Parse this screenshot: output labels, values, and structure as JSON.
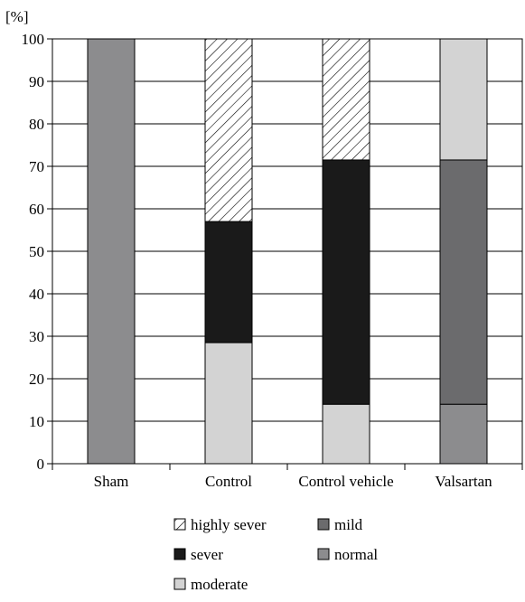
{
  "chart_data": {
    "type": "bar",
    "stacked": true,
    "ylabel": "[%]",
    "ylim": [
      0,
      100
    ],
    "yticks": [
      0,
      10,
      20,
      30,
      40,
      50,
      60,
      70,
      80,
      90,
      100
    ],
    "grid": true,
    "legend_position": "bottom",
    "categories": [
      "Sham",
      "Control",
      "Control vehicle",
      "Valsartan"
    ],
    "series": [
      {
        "name": "normal",
        "key": "normal",
        "color": "#8c8c8e",
        "pattern": "solid",
        "values": [
          100,
          0,
          0,
          14
        ]
      },
      {
        "name": "moderate",
        "key": "moderate",
        "color": "#d3d3d3",
        "pattern": "solid",
        "values": [
          0,
          28.5,
          14,
          0
        ]
      },
      {
        "name": "mild",
        "key": "mild",
        "color": "#6b6b6d",
        "pattern": "solid",
        "values": [
          0,
          0,
          0,
          57.5
        ]
      },
      {
        "name": "sever",
        "key": "sever",
        "color": "#1a1a1a",
        "pattern": "solid",
        "values": [
          0,
          28.5,
          57.5,
          0
        ]
      },
      {
        "name": "highly sever",
        "key": "highly-sever",
        "color": "#ffffff",
        "pattern": "hatch",
        "values": [
          0,
          43,
          28.5,
          0
        ]
      },
      {
        "name": "",
        "key": "moderate-top",
        "color": "#d3d3d3",
        "pattern": "solid",
        "values": [
          0,
          0,
          0,
          28.5
        ]
      }
    ],
    "legend": [
      {
        "label": "highly sever",
        "key": "highly-sever",
        "color": "#ffffff",
        "pattern": "hatch"
      },
      {
        "label": "mild",
        "key": "mild",
        "color": "#6b6b6d",
        "pattern": "solid"
      },
      {
        "label": "sever",
        "key": "sever",
        "color": "#1a1a1a",
        "pattern": "solid"
      },
      {
        "label": "normal",
        "key": "normal",
        "color": "#8c8c8e",
        "pattern": "solid"
      },
      {
        "label": "moderate",
        "key": "moderate",
        "color": "#d3d3d3",
        "pattern": "solid"
      }
    ]
  }
}
